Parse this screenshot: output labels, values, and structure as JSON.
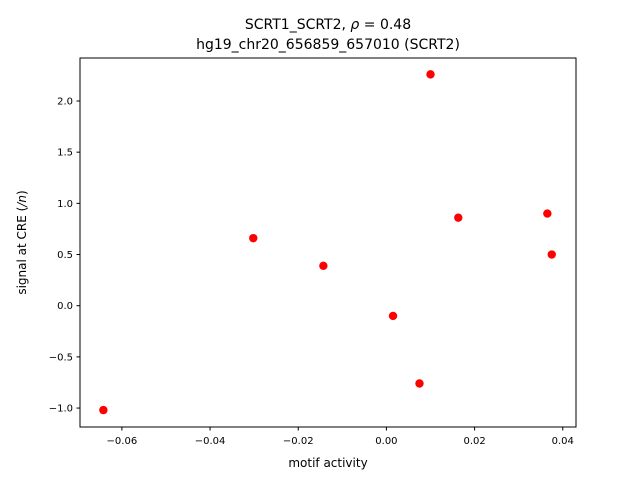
{
  "chart_data": {
    "type": "scatter",
    "title_line1": "SCRT1_SCRT2, ρ = 0.48",
    "title_line2": "hg19_chr20_656859_657010 (SCRT2)",
    "xlabel": "motif activity",
    "ylabel": "signal at CRE (/n)",
    "xlim": [
      -0.0695,
      0.043
    ],
    "ylim": [
      -1.185,
      2.42
    ],
    "xticks": [
      -0.06,
      -0.04,
      -0.02,
      0.0,
      0.02,
      0.04
    ],
    "xtick_labels": [
      "−0.06",
      "−0.04",
      "−0.02",
      "0.00",
      "0.02",
      "0.04"
    ],
    "yticks": [
      -1.0,
      -0.5,
      0.0,
      0.5,
      1.0,
      1.5,
      2.0
    ],
    "ytick_labels": [
      "−1.0",
      "−0.5",
      "0.0",
      "0.5",
      "1.0",
      "1.5",
      "2.0"
    ],
    "marker_color": "#ff0000",
    "grid": false,
    "points": [
      {
        "x": -0.0642,
        "y": -1.02
      },
      {
        "x": -0.0302,
        "y": 0.66
      },
      {
        "x": -0.0143,
        "y": 0.39
      },
      {
        "x": 0.0015,
        "y": -0.1
      },
      {
        "x": 0.0075,
        "y": -0.76
      },
      {
        "x": 0.01,
        "y": 2.26
      },
      {
        "x": 0.0163,
        "y": 0.86
      },
      {
        "x": 0.0365,
        "y": 0.9
      },
      {
        "x": 0.0375,
        "y": 0.5
      }
    ]
  }
}
